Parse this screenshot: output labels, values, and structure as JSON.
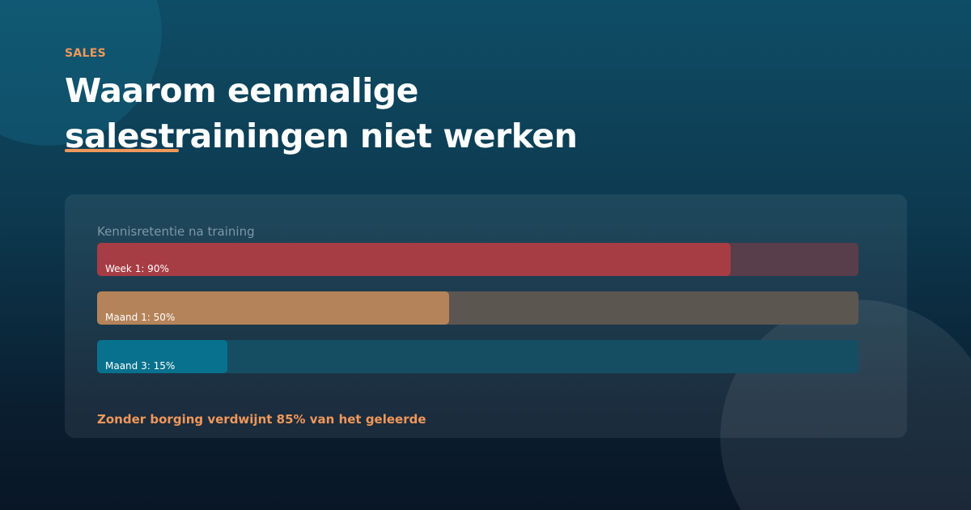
{
  "header": {
    "category": "SALES",
    "title": "Waarom eenmalige salestrainingen niet werken",
    "accent_color": "#f0975a"
  },
  "chart_data": {
    "type": "bar",
    "orientation": "horizontal",
    "title": "Kennisretentie na training",
    "categories": [
      "Week 1",
      "Maand 1",
      "Maand 3"
    ],
    "values": [
      90,
      50,
      15
    ],
    "unit": "%",
    "labels": [
      "Week 1: 90%",
      "Maand 1: 50%",
      "Maand 3: 15%"
    ],
    "colors": [
      "#a63c44",
      "#b5835a",
      "#08728e"
    ],
    "track_colors": [
      "#583d4a",
      "#5c5650",
      "#154e63"
    ],
    "xlim": [
      0,
      100
    ],
    "grid": false,
    "footnote": "Zonder borging verdwijnt 85% van het geleerde"
  }
}
